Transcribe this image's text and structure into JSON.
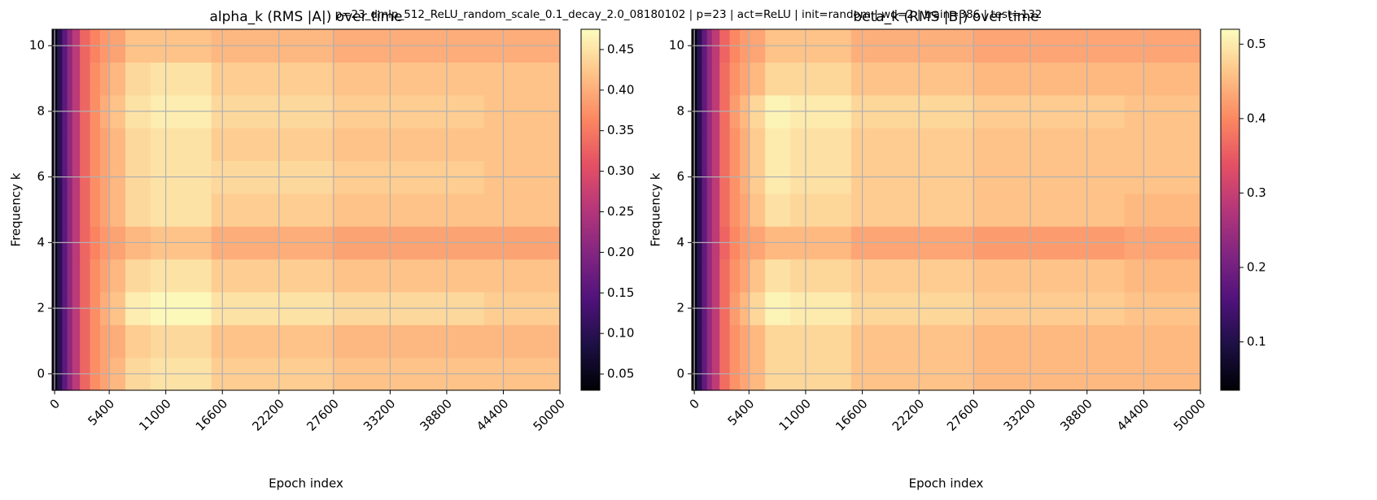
{
  "title": "p=23_dmlp_512_ReLU_random_scale_0.1_decay_2.0_08180102 | p=23 | act=ReLU | init=random | wd=2 | train=386 | test=132",
  "chart_data": [
    {
      "type": "heatmap",
      "title": "alpha_k (RMS |A|) over time",
      "xlabel": "Epoch index",
      "ylabel": "Frequency k",
      "colormap": "magma",
      "grid": true,
      "x": [
        0,
        500,
        1000,
        1500,
        2000,
        3000,
        4000,
        5000,
        6000,
        8000,
        11000,
        20000,
        35000,
        50000
      ],
      "y": [
        0,
        1,
        2,
        3,
        4,
        5,
        6,
        7,
        8,
        9,
        10
      ],
      "z": [
        [
          0.04,
          0.1,
          0.16,
          0.21,
          0.26,
          0.33,
          0.37,
          0.39,
          0.41,
          0.44,
          0.45,
          0.43,
          0.42,
          0.42
        ],
        [
          0.04,
          0.1,
          0.16,
          0.21,
          0.26,
          0.33,
          0.37,
          0.39,
          0.4,
          0.43,
          0.44,
          0.42,
          0.41,
          0.41
        ],
        [
          0.04,
          0.1,
          0.16,
          0.21,
          0.26,
          0.33,
          0.37,
          0.4,
          0.42,
          0.46,
          0.47,
          0.45,
          0.44,
          0.43
        ],
        [
          0.04,
          0.1,
          0.16,
          0.21,
          0.26,
          0.33,
          0.37,
          0.39,
          0.41,
          0.44,
          0.45,
          0.43,
          0.42,
          0.42
        ],
        [
          0.04,
          0.1,
          0.16,
          0.21,
          0.26,
          0.33,
          0.36,
          0.38,
          0.39,
          0.41,
          0.42,
          0.4,
          0.39,
          0.39
        ],
        [
          0.04,
          0.1,
          0.16,
          0.21,
          0.26,
          0.33,
          0.37,
          0.39,
          0.41,
          0.44,
          0.45,
          0.43,
          0.42,
          0.42
        ],
        [
          0.04,
          0.1,
          0.16,
          0.21,
          0.26,
          0.33,
          0.37,
          0.39,
          0.41,
          0.44,
          0.45,
          0.44,
          0.43,
          0.42
        ],
        [
          0.04,
          0.1,
          0.16,
          0.21,
          0.26,
          0.33,
          0.37,
          0.39,
          0.41,
          0.44,
          0.45,
          0.43,
          0.42,
          0.42
        ],
        [
          0.04,
          0.1,
          0.16,
          0.21,
          0.26,
          0.33,
          0.37,
          0.4,
          0.42,
          0.45,
          0.46,
          0.44,
          0.43,
          0.42
        ],
        [
          0.04,
          0.1,
          0.16,
          0.21,
          0.26,
          0.33,
          0.37,
          0.39,
          0.41,
          0.44,
          0.45,
          0.43,
          0.42,
          0.42
        ],
        [
          0.04,
          0.1,
          0.16,
          0.21,
          0.26,
          0.33,
          0.36,
          0.38,
          0.39,
          0.42,
          0.42,
          0.41,
          0.4,
          0.4
        ]
      ],
      "xlim": [
        -250,
        50000
      ],
      "ylim": [
        -0.5,
        10.5
      ],
      "xticks": [
        0,
        5400,
        11000,
        16600,
        22200,
        27600,
        33200,
        38800,
        44400,
        50000
      ],
      "yticks": [
        0,
        2,
        4,
        6,
        8,
        10
      ],
      "zlim": [
        0.03,
        0.475
      ],
      "zticks": [
        0.05,
        {
          "value": 0.1,
          "label": "0.10"
        },
        0.15,
        {
          "value": 0.2,
          "label": "0.20"
        },
        0.25,
        {
          "value": 0.3,
          "label": "0.30"
        },
        0.35,
        {
          "value": 0.4,
          "label": "0.40"
        },
        0.45
      ]
    },
    {
      "type": "heatmap",
      "title": "beta_k (RMS |B|) over time",
      "xlabel": "Epoch index",
      "ylabel": "Frequency k",
      "colormap": "magma",
      "grid": true,
      "x": [
        0,
        500,
        1000,
        1500,
        2000,
        3000,
        4000,
        5000,
        6000,
        8000,
        11000,
        20000,
        35000,
        50000
      ],
      "y": [
        0,
        1,
        2,
        3,
        4,
        5,
        6,
        7,
        8,
        9,
        10
      ],
      "z": [
        [
          0.04,
          0.11,
          0.18,
          0.24,
          0.29,
          0.37,
          0.41,
          0.43,
          0.45,
          0.48,
          0.48,
          0.46,
          0.45,
          0.45
        ],
        [
          0.04,
          0.11,
          0.18,
          0.24,
          0.29,
          0.37,
          0.41,
          0.43,
          0.45,
          0.48,
          0.48,
          0.46,
          0.45,
          0.45
        ],
        [
          0.04,
          0.11,
          0.18,
          0.24,
          0.29,
          0.37,
          0.42,
          0.45,
          0.48,
          0.51,
          0.5,
          0.48,
          0.47,
          0.46
        ],
        [
          0.04,
          0.11,
          0.18,
          0.24,
          0.29,
          0.37,
          0.41,
          0.43,
          0.46,
          0.49,
          0.48,
          0.47,
          0.46,
          0.45
        ],
        [
          0.04,
          0.11,
          0.18,
          0.24,
          0.29,
          0.36,
          0.4,
          0.42,
          0.43,
          0.45,
          0.45,
          0.43,
          0.42,
          0.43
        ],
        [
          0.04,
          0.11,
          0.18,
          0.24,
          0.29,
          0.37,
          0.41,
          0.43,
          0.46,
          0.49,
          0.48,
          0.47,
          0.46,
          0.45
        ],
        [
          0.04,
          0.11,
          0.18,
          0.24,
          0.29,
          0.37,
          0.41,
          0.44,
          0.47,
          0.5,
          0.49,
          0.47,
          0.46,
          0.46
        ],
        [
          0.04,
          0.11,
          0.18,
          0.24,
          0.29,
          0.37,
          0.41,
          0.44,
          0.47,
          0.5,
          0.49,
          0.47,
          0.46,
          0.46
        ],
        [
          0.04,
          0.11,
          0.18,
          0.24,
          0.29,
          0.37,
          0.42,
          0.45,
          0.48,
          0.51,
          0.5,
          0.48,
          0.47,
          0.46
        ],
        [
          0.04,
          0.11,
          0.18,
          0.24,
          0.29,
          0.37,
          0.41,
          0.43,
          0.45,
          0.48,
          0.48,
          0.46,
          0.45,
          0.45
        ],
        [
          0.04,
          0.11,
          0.18,
          0.24,
          0.29,
          0.36,
          0.4,
          0.42,
          0.43,
          0.46,
          0.46,
          0.44,
          0.43,
          0.43
        ]
      ],
      "xlim": [
        -250,
        50000
      ],
      "ylim": [
        -0.5,
        10.5
      ],
      "xticks": [
        0,
        5400,
        11000,
        16600,
        22200,
        27600,
        33200,
        38800,
        44400,
        50000
      ],
      "yticks": [
        0,
        2,
        4,
        6,
        8,
        10
      ],
      "zlim": [
        0.035,
        0.52
      ],
      "zticks": [
        0.1,
        0.2,
        0.3,
        0.4,
        0.5
      ]
    }
  ]
}
